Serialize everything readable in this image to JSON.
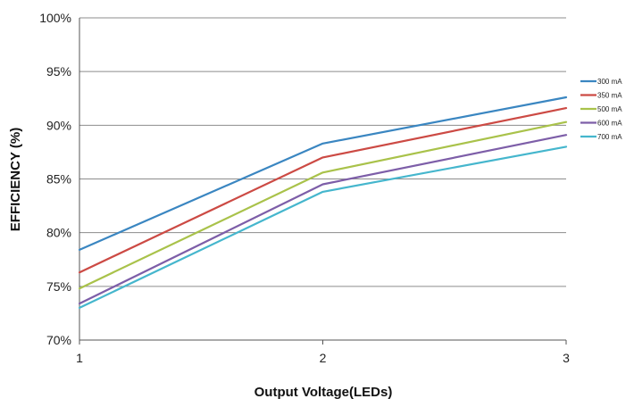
{
  "chart_data": {
    "type": "line",
    "title": "",
    "xlabel": "Output Voltage(LEDs)",
    "ylabel": "EFFICIENCY (%)",
    "x": [
      1,
      2,
      3
    ],
    "x_tick_labels": [
      "1",
      "2",
      "3"
    ],
    "ylim": [
      70,
      100
    ],
    "y_ticks": [
      70,
      75,
      80,
      85,
      90,
      95,
      100
    ],
    "y_tick_labels": [
      "70%",
      "75%",
      "80%",
      "85%",
      "90%",
      "95%",
      "100%"
    ],
    "grid": true,
    "legend_position": "right",
    "series": [
      {
        "name": "300 mA",
        "color": "#3a86c1",
        "values": [
          78.4,
          88.3,
          92.6
        ]
      },
      {
        "name": "350 mA",
        "color": "#cc4a44",
        "values": [
          76.3,
          87.0,
          91.6
        ]
      },
      {
        "name": "500 mA",
        "color": "#a9c24a",
        "values": [
          74.8,
          85.6,
          90.3
        ]
      },
      {
        "name": "600 mA",
        "color": "#7d5ea8",
        "values": [
          73.4,
          84.5,
          89.1
        ]
      },
      {
        "name": "700 mA",
        "color": "#45b6cd",
        "values": [
          73.0,
          83.8,
          88.0
        ]
      }
    ]
  }
}
